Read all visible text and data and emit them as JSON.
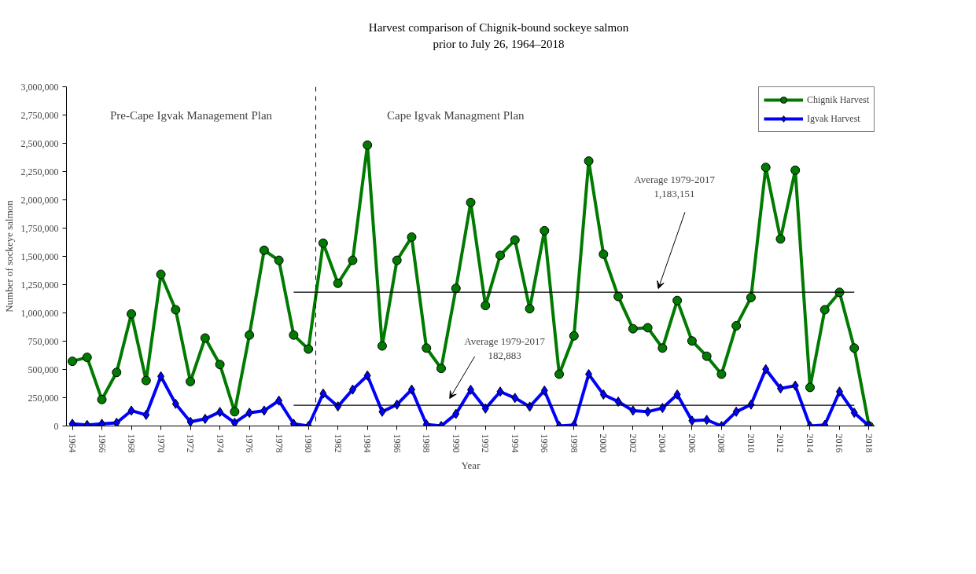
{
  "chart_data": {
    "type": "line",
    "title": "Harvest comparison of Chignik-bound  sockeye salmon\nprior to July 26, 1964–2018",
    "xlabel": "Year",
    "ylabel": "Number of sockeye salmon",
    "x": [
      1964,
      1965,
      1966,
      1967,
      1968,
      1969,
      1970,
      1971,
      1972,
      1973,
      1974,
      1975,
      1976,
      1977,
      1978,
      1979,
      1980,
      1981,
      1982,
      1983,
      1984,
      1985,
      1986,
      1987,
      1988,
      1989,
      1990,
      1991,
      1992,
      1993,
      1994,
      1995,
      1996,
      1997,
      1998,
      1999,
      2000,
      2001,
      2002,
      2003,
      2004,
      2005,
      2006,
      2007,
      2008,
      2009,
      2010,
      2011,
      2012,
      2013,
      2014,
      2015,
      2016,
      2017,
      2018
    ],
    "series": [
      {
        "name": "Chignik Harvest",
        "color": "#007a00",
        "marker": "circle",
        "values": [
          572000,
          607000,
          234000,
          474000,
          991000,
          402000,
          1341000,
          1028000,
          393000,
          778000,
          544000,
          126000,
          804000,
          1554000,
          1465000,
          804000,
          680000,
          1617000,
          1262000,
          1465000,
          2484000,
          708000,
          1465000,
          1671000,
          689000,
          509000,
          1217000,
          1977000,
          1065000,
          1509000,
          1645000,
          1037000,
          1727000,
          458000,
          797000,
          2343000,
          1519000,
          1145000,
          860000,
          869000,
          689000,
          1110000,
          752000,
          617000,
          458000,
          886000,
          1136000,
          2287000,
          1654000,
          2262000,
          341000,
          1028000,
          1182000,
          689000,
          0
        ]
      },
      {
        "name": "Igvak Harvest",
        "color": "#0000ff",
        "marker": "diamond",
        "values": [
          19000,
          9000,
          19000,
          28000,
          136000,
          98000,
          439000,
          196000,
          37000,
          63000,
          124000,
          28000,
          117000,
          136000,
          224000,
          19000,
          0,
          287000,
          173000,
          322000,
          446000,
          126000,
          189000,
          322000,
          14000,
          0,
          107000,
          320000,
          154000,
          304000,
          248000,
          171000,
          313000,
          0,
          9000,
          458000,
          278000,
          215000,
          136000,
          126000,
          159000,
          278000,
          47000,
          54000,
          0,
          126000,
          189000,
          502000,
          332000,
          357000,
          0,
          9000,
          304000,
          117000,
          0
        ]
      },
      {
        "type": "line",
        "color": "#000000",
        "marker": "none",
        "values": [
          null,
          null,
          null,
          null,
          null,
          null,
          null,
          null,
          null,
          null,
          null,
          null,
          null,
          null,
          null,
          1183151,
          1183151,
          1183151,
          1183151,
          1183151,
          1183151,
          1183151,
          1183151,
          1183151,
          1183151,
          1183151,
          1183151,
          1183151,
          1183151,
          1183151,
          1183151,
          1183151,
          1183151,
          1183151,
          1183151,
          1183151,
          1183151,
          1183151,
          1183151,
          1183151,
          1183151,
          1183151,
          1183151,
          1183151,
          1183151,
          1183151,
          1183151,
          1183151,
          1183151,
          1183151,
          1183151,
          1183151,
          1183151,
          1183151,
          null
        ]
      },
      {
        "type": "line",
        "color": "#000000",
        "marker": "none",
        "values": [
          null,
          null,
          null,
          null,
          null,
          null,
          null,
          null,
          null,
          null,
          null,
          null,
          null,
          null,
          null,
          182883,
          182883,
          182883,
          182883,
          182883,
          182883,
          182883,
          182883,
          182883,
          182883,
          182883,
          182883,
          182883,
          182883,
          182883,
          182883,
          182883,
          182883,
          182883,
          182883,
          182883,
          182883,
          182883,
          182883,
          182883,
          182883,
          182883,
          182883,
          182883,
          182883,
          182883,
          182883,
          182883,
          182883,
          182883,
          182883,
          182883,
          182883,
          182883,
          null
        ]
      }
    ],
    "xlim": [
      1963.6,
      2018.4
    ],
    "ylim": [
      0,
      3000000
    ],
    "xticks": [
      1964,
      1966,
      1968,
      1970,
      1972,
      1974,
      1976,
      1978,
      1980,
      1982,
      1984,
      1986,
      1988,
      1990,
      1992,
      1994,
      1996,
      1998,
      2000,
      2002,
      2004,
      2006,
      2008,
      2010,
      2012,
      2014,
      2016,
      2018
    ],
    "yticks": [
      {
        "value": 0,
        "label": "0"
      },
      {
        "value": 250000,
        "label": "250,000"
      },
      {
        "value": 500000,
        "label": "500,000"
      },
      {
        "value": 750000,
        "label": "750,000"
      },
      {
        "value": 1000000,
        "label": "1,000,000"
      },
      {
        "value": 1250000,
        "label": "1,250,000"
      },
      {
        "value": 1500000,
        "label": "1,500,000"
      },
      {
        "value": 1750000,
        "label": "1,750,000"
      },
      {
        "value": 2000000,
        "label": "2,000,000"
      },
      {
        "value": 2250000,
        "label": "2,250,000"
      },
      {
        "value": 2500000,
        "label": "2,500,000"
      },
      {
        "value": 2750000,
        "label": "2,750,000"
      },
      {
        "value": 3000000,
        "label": "3,000,000"
      }
    ],
    "ref_lines": [
      {
        "axis": "x",
        "value": 1980.5,
        "color": "#000000",
        "line_style": "dashed"
      }
    ],
    "annotations": [
      "Pre-Cape Igvak Management Plan",
      "Cape Igvak Managment Plan",
      "Average 1979-2017\n1,183,151",
      "Average 1979-2017\n182,883"
    ],
    "grid": false,
    "legend": "top right",
    "line_style": "solid"
  }
}
